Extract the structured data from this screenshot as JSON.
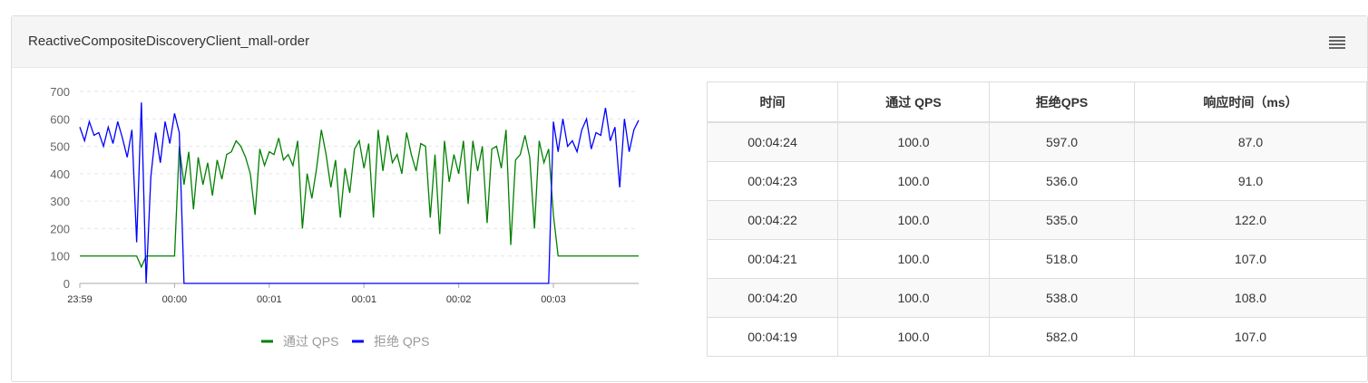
{
  "panel": {
    "title": "ReactiveCompositeDiscoveryClient_mall-order",
    "menu_icon": "hamburger-menu-icon"
  },
  "table": {
    "headers": [
      "时间",
      "通过 QPS",
      "拒绝QPS",
      "响应时间（ms）"
    ],
    "rows": [
      [
        "00:04:24",
        "100.0",
        "597.0",
        "87.0"
      ],
      [
        "00:04:23",
        "100.0",
        "536.0",
        "91.0"
      ],
      [
        "00:04:22",
        "100.0",
        "535.0",
        "122.0"
      ],
      [
        "00:04:21",
        "100.0",
        "518.0",
        "107.0"
      ],
      [
        "00:04:20",
        "100.0",
        "538.0",
        "108.0"
      ],
      [
        "00:04:19",
        "100.0",
        "582.0",
        "107.0"
      ]
    ]
  },
  "chart_data": {
    "type": "line",
    "ylim": [
      0,
      700
    ],
    "yticks": [
      0,
      100,
      200,
      300,
      400,
      500,
      600,
      700
    ],
    "x_ticks": [
      {
        "index": 0,
        "label": "23:59"
      },
      {
        "index": 20,
        "label": "00:00"
      },
      {
        "index": 40,
        "label": "00:01"
      },
      {
        "index": 60,
        "label": "00:01"
      },
      {
        "index": 80,
        "label": "00:02"
      },
      {
        "index": 100,
        "label": "00:03"
      }
    ],
    "grid": "horizontal-dashed",
    "legend": "bottom",
    "series": [
      {
        "name": "通过 QPS",
        "color": "#008000",
        "values": [
          100,
          100,
          100,
          100,
          100,
          100,
          100,
          100,
          100,
          100,
          100,
          100,
          100,
          60,
          100,
          100,
          100,
          100,
          100,
          100,
          100,
          500,
          360,
          480,
          270,
          460,
          360,
          440,
          320,
          450,
          380,
          470,
          480,
          520,
          500,
          460,
          400,
          250,
          490,
          430,
          480,
          470,
          530,
          450,
          470,
          430,
          520,
          200,
          400,
          310,
          420,
          560,
          470,
          350,
          450,
          240,
          420,
          330,
          490,
          520,
          420,
          510,
          240,
          560,
          410,
          540,
          440,
          470,
          400,
          550,
          470,
          410,
          510,
          500,
          240,
          470,
          180,
          520,
          370,
          470,
          400,
          520,
          290,
          520,
          410,
          500,
          220,
          490,
          500,
          420,
          560,
          140,
          450,
          470,
          540,
          460,
          200,
          520,
          440,
          490,
          250,
          100,
          100,
          100,
          100,
          100,
          100,
          100,
          100,
          100,
          100,
          100,
          100,
          100,
          100,
          100,
          100,
          100,
          100
        ]
      },
      {
        "name": "拒绝 QPS",
        "color": "#0000ff",
        "values": [
          570,
          520,
          590,
          540,
          550,
          500,
          570,
          510,
          590,
          530,
          460,
          560,
          150,
          660,
          0,
          390,
          550,
          440,
          590,
          510,
          620,
          550,
          0,
          0,
          0,
          0,
          0,
          0,
          0,
          0,
          0,
          0,
          0,
          0,
          0,
          0,
          0,
          0,
          0,
          0,
          0,
          0,
          0,
          0,
          0,
          0,
          0,
          0,
          0,
          0,
          0,
          0,
          0,
          0,
          0,
          0,
          0,
          0,
          0,
          0,
          0,
          0,
          0,
          0,
          0,
          0,
          0,
          0,
          0,
          0,
          0,
          0,
          0,
          0,
          0,
          0,
          0,
          0,
          0,
          0,
          0,
          0,
          0,
          0,
          0,
          0,
          0,
          0,
          0,
          0,
          0,
          0,
          0,
          0,
          0,
          0,
          0,
          0,
          0,
          0,
          590,
          480,
          600,
          500,
          520,
          480,
          560,
          600,
          490,
          550,
          540,
          640,
          520,
          570,
          350,
          600,
          480,
          560,
          595
        ]
      }
    ]
  }
}
